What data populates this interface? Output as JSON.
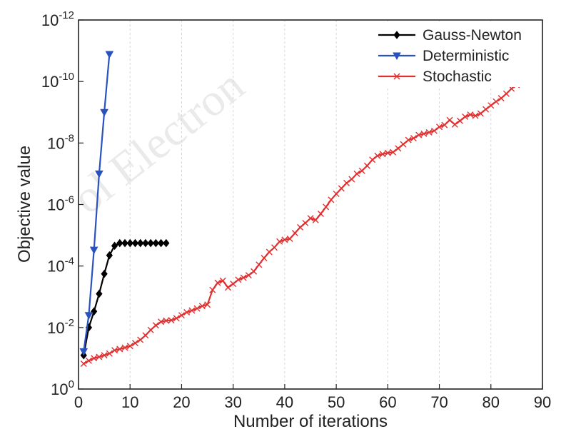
{
  "watermark": "ol Electron",
  "chart_data": {
    "type": "line",
    "xlabel": "Number of iterations",
    "ylabel": "Objective value",
    "xlim": [
      0,
      90
    ],
    "ylim_log10": [
      -12,
      0
    ],
    "y_scale": "log",
    "x_ticks": [
      "0",
      "10",
      "20",
      "30",
      "40",
      "50",
      "60",
      "70",
      "80",
      "90"
    ],
    "x_tick_values": [
      0,
      10,
      20,
      30,
      40,
      50,
      60,
      70,
      80,
      90
    ],
    "y_tick_exponents": [
      0,
      -2,
      -4,
      -6,
      -8,
      -10,
      -12
    ],
    "y_tick_base": "10",
    "y_tick_sup": [
      "0",
      "-2",
      "-4",
      "-6",
      "-8",
      "-10",
      "-12"
    ],
    "grid": true,
    "legend": {
      "placement": "top-right"
    },
    "series": [
      {
        "name": "Gauss-Newton",
        "color": "#000000",
        "marker": "diamond",
        "x": [
          1,
          2,
          3,
          4,
          5,
          6,
          7,
          8,
          9,
          10,
          11,
          12,
          13,
          14,
          15,
          16,
          17
        ],
        "y": [
          0.08,
          0.01,
          0.003,
          0.0008,
          0.00018,
          4.5e-05,
          2.2e-05,
          1.8e-05,
          1.8e-05,
          1.8e-05,
          1.8e-05,
          1.8e-05,
          1.8e-05,
          1.8e-05,
          1.8e-05,
          1.8e-05,
          1.8e-05
        ]
      },
      {
        "name": "Deterministic",
        "color": "#2a52be",
        "marker": "triangle-down",
        "x": [
          1,
          2,
          3,
          4,
          5,
          6
        ],
        "y": [
          0.06,
          0.004,
          3e-05,
          1e-07,
          1e-09,
          1.3e-11
        ]
      },
      {
        "name": "Stochastic",
        "color": "#e03030",
        "marker": "x",
        "x": [
          1,
          2,
          3,
          4,
          5,
          6,
          7,
          8,
          9,
          10,
          11,
          12,
          13,
          14,
          15,
          16,
          17,
          18,
          19,
          20,
          21,
          22,
          23,
          24,
          25,
          26,
          27,
          28,
          29,
          30,
          31,
          32,
          33,
          34,
          35,
          36,
          37,
          38,
          39,
          40,
          41,
          42,
          43,
          44,
          45,
          46,
          47,
          48,
          49,
          50,
          51,
          52,
          53,
          54,
          55,
          56,
          57,
          58,
          59,
          60,
          61,
          62,
          63,
          64,
          65,
          66,
          67,
          68,
          69,
          70,
          71,
          72,
          73,
          74,
          75,
          76,
          77,
          78,
          79,
          80,
          81,
          82,
          83,
          84,
          85,
          86
        ],
        "y": [
          0.15,
          0.12,
          0.1,
          0.09,
          0.08,
          0.07,
          0.055,
          0.05,
          0.045,
          0.04,
          0.032,
          0.025,
          0.018,
          0.012,
          0.0085,
          0.0065,
          0.006,
          0.0058,
          0.005,
          0.004,
          0.0032,
          0.0028,
          0.0024,
          0.002,
          0.0018,
          0.0006,
          0.00035,
          0.0003,
          0.0005,
          0.00038,
          0.00028,
          0.00024,
          0.0002,
          0.00015,
          9e-05,
          5.5e-05,
          3.5e-05,
          2.5e-05,
          1.6e-05,
          1.4e-05,
          1.3e-05,
          8.5e-06,
          5.5e-06,
          4e-06,
          2.8e-06,
          3.2e-06,
          2e-06,
          1.2e-06,
          7e-07,
          4.5e-07,
          3e-07,
          2e-07,
          1.5e-07,
          1e-07,
          8e-08,
          5.5e-08,
          3.5e-08,
          2.6e-08,
          2.3e-08,
          2.1e-08,
          2e-08,
          1.5e-08,
          1.1e-08,
          8e-09,
          7e-09,
          5.5e-09,
          5e-09,
          4.5e-09,
          4e-09,
          3e-09,
          2.6e-09,
          1.8e-09,
          2.5e-09,
          1.9e-09,
          1.4e-09,
          1.2e-09,
          1.3e-09,
          1.1e-09,
          8e-10,
          6e-10,
          4.5e-10,
          3.5e-10,
          2.5e-10,
          1.7e-10,
          1.3e-10,
          1e-10
        ]
      }
    ]
  }
}
